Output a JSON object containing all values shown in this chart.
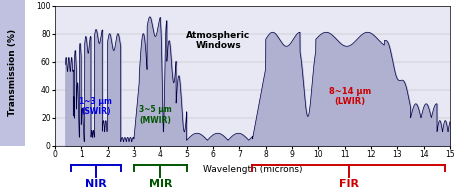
{
  "xlabel": "Wavelength (microns)",
  "ylabel": "Transmission (%)",
  "xlim": [
    0.4,
    15
  ],
  "ylim": [
    0,
    100
  ],
  "fill_color": "#aaaacc",
  "line_color": "#000044",
  "bg_color": "#e8e8f4",
  "sidebar_color": "#c0c0e0",
  "annotation_atm": "Atmospheric\nWindows",
  "ann_swir": "1~3 μm\n(SWIR)",
  "ann_mwir": "3~5 μm\n(MWIR)",
  "ann_lwir": "8~14 μm\n(LWIR)",
  "label_nir": "NIR",
  "label_mir": "MIR",
  "label_fir": "FIR",
  "color_swir": "#0000ee",
  "color_mwir": "#005500",
  "color_lwir": "#cc0000",
  "color_nir": "#0000cc",
  "color_mir": "#005500",
  "color_fir": "#cc0000"
}
